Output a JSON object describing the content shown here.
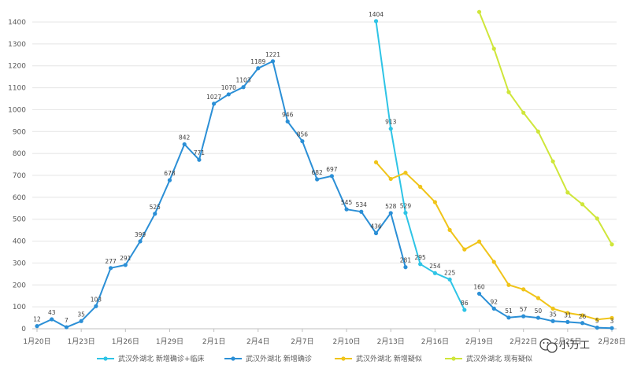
{
  "chart_data": {
    "type": "line",
    "ylim": [
      0,
      1400
    ],
    "yticks": [
      0,
      100,
      200,
      300,
      400,
      500,
      600,
      700,
      800,
      900,
      1000,
      1100,
      1200,
      1300,
      1400
    ],
    "dates": [
      "1月20日",
      "1月21日",
      "1月22日",
      "1月23日",
      "1月24日",
      "1月25日",
      "1月26日",
      "1月27日",
      "1月28日",
      "1月29日",
      "1月30日",
      "1月31日",
      "2月1日",
      "2月2日",
      "2月3日",
      "2月4日",
      "2月5日",
      "2月6日",
      "2月7日",
      "2月8日",
      "2月9日",
      "2月10日",
      "2月11日",
      "2月12日",
      "2月13日",
      "2月14日",
      "2月15日",
      "2月16日",
      "2月17日",
      "2月18日",
      "2月19日",
      "2月20日",
      "2月21日",
      "2月22日",
      "2月23日",
      "2月24日",
      "2月25日",
      "2月26日",
      "2月27日",
      "2月28日"
    ],
    "xtick_labels": [
      "1月20日",
      "1月23日",
      "1月26日",
      "1月29日",
      "2月1日",
      "2月4日",
      "2月7日",
      "2月10日",
      "2月13日",
      "2月16日",
      "2月19日",
      "2月22日",
      "2月25日",
      "2月28日"
    ],
    "grid": "horizontal",
    "legend_position": "bottom",
    "series": [
      {
        "name": "武汉外湖北 新增确诊+临床",
        "color": "#2ec4e6",
        "points": [
          [
            23,
            1404
          ],
          [
            24,
            913
          ],
          [
            25,
            529
          ],
          [
            26,
            295
          ],
          [
            27,
            254
          ],
          [
            28,
            225
          ],
          [
            29,
            86
          ]
        ],
        "labels": true
      },
      {
        "name": "武汉外湖北 新增确诊",
        "color": "#2b8fd6",
        "points": [
          [
            0,
            12
          ],
          [
            1,
            43
          ],
          [
            2,
            7
          ],
          [
            3,
            35
          ],
          [
            4,
            103
          ],
          [
            5,
            277
          ],
          [
            6,
            291
          ],
          [
            7,
            399
          ],
          [
            8,
            525
          ],
          [
            9,
            678
          ],
          [
            10,
            842
          ],
          [
            11,
            771
          ],
          [
            12,
            1027
          ],
          [
            13,
            1070
          ],
          [
            14,
            1103
          ],
          [
            15,
            1189
          ],
          [
            16,
            1221
          ],
          [
            17,
            946
          ],
          [
            18,
            856
          ],
          [
            19,
            682
          ],
          [
            20,
            697
          ],
          [
            21,
            545
          ],
          [
            22,
            534
          ],
          [
            23,
            436
          ],
          [
            24,
            528
          ],
          [
            25,
            281
          ]
        ],
        "points_b": [
          [
            30,
            160
          ],
          [
            31,
            92
          ],
          [
            32,
            51
          ],
          [
            33,
            57
          ],
          [
            34,
            50
          ],
          [
            35,
            35
          ],
          [
            36,
            31
          ],
          [
            37,
            26
          ],
          [
            38,
            5
          ],
          [
            39,
            3
          ]
        ],
        "labels": true
      },
      {
        "name": "武汉外湖北 新增疑似",
        "color": "#f0c419",
        "points": [
          [
            23,
            760
          ],
          [
            24,
            684
          ],
          [
            25,
            712
          ],
          [
            26,
            648
          ],
          [
            27,
            578
          ],
          [
            28,
            451
          ],
          [
            29,
            362
          ],
          [
            30,
            398
          ],
          [
            31,
            305
          ],
          [
            32,
            200
          ],
          [
            33,
            180
          ],
          [
            34,
            140
          ],
          [
            35,
            92
          ],
          [
            36,
            72
          ],
          [
            37,
            61
          ],
          [
            38,
            42
          ],
          [
            39,
            49
          ]
        ],
        "labels": false
      },
      {
        "name": "武汉外湖北 现有疑似",
        "color": "#cfe63a",
        "points": [
          [
            30,
            1446
          ],
          [
            31,
            1278
          ],
          [
            32,
            1080
          ],
          [
            33,
            986
          ],
          [
            34,
            900
          ],
          [
            35,
            764
          ],
          [
            36,
            622
          ],
          [
            37,
            568
          ],
          [
            38,
            503
          ],
          [
            39,
            385
          ]
        ],
        "labels": false
      }
    ]
  },
  "watermark": {
    "text": "小万工",
    "icon": "wechat-icon"
  }
}
